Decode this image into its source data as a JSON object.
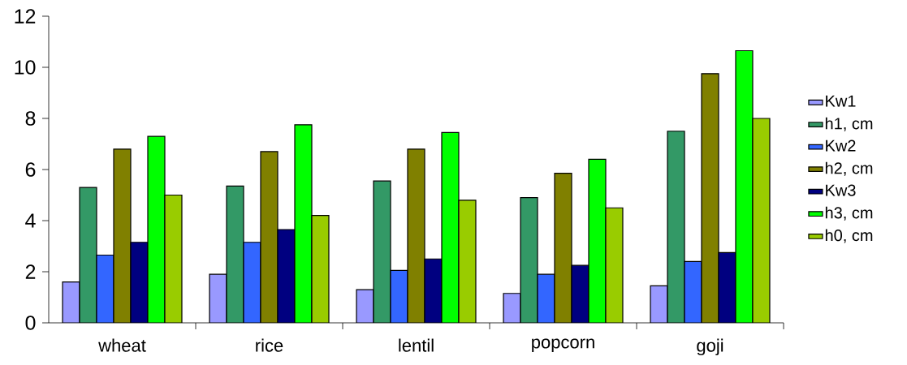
{
  "chart_data": {
    "type": "bar",
    "categories": [
      "wheat",
      "rice",
      "lentil",
      "popcorn",
      "goji"
    ],
    "series": [
      {
        "name": "Kw1",
        "color": "#9999ff",
        "values": [
          1.6,
          1.9,
          1.3,
          1.15,
          1.45
        ]
      },
      {
        "name": "h1, cm",
        "color": "#339966",
        "values": [
          5.3,
          5.35,
          5.55,
          4.9,
          7.5
        ]
      },
      {
        "name": "Kw2",
        "color": "#3366ff",
        "values": [
          2.65,
          3.15,
          2.05,
          1.9,
          2.4
        ]
      },
      {
        "name": "h2, cm",
        "color": "#808000",
        "values": [
          6.8,
          6.7,
          6.8,
          5.85,
          9.75
        ]
      },
      {
        "name": "Kw3",
        "color": "#000080",
        "values": [
          3.15,
          3.65,
          2.5,
          2.25,
          2.75
        ]
      },
      {
        "name": "h3, cm",
        "color": "#00ff00",
        "values": [
          7.3,
          7.75,
          7.45,
          6.4,
          10.65
        ]
      },
      {
        "name": "h0, cm",
        "color": "#99cc00",
        "values": [
          5.0,
          4.2,
          4.8,
          4.5,
          8.0
        ]
      }
    ],
    "ylim": [
      0,
      12
    ],
    "yticks": [
      0,
      2,
      4,
      6,
      8,
      10,
      12
    ],
    "grid": false,
    "legend": "right"
  }
}
